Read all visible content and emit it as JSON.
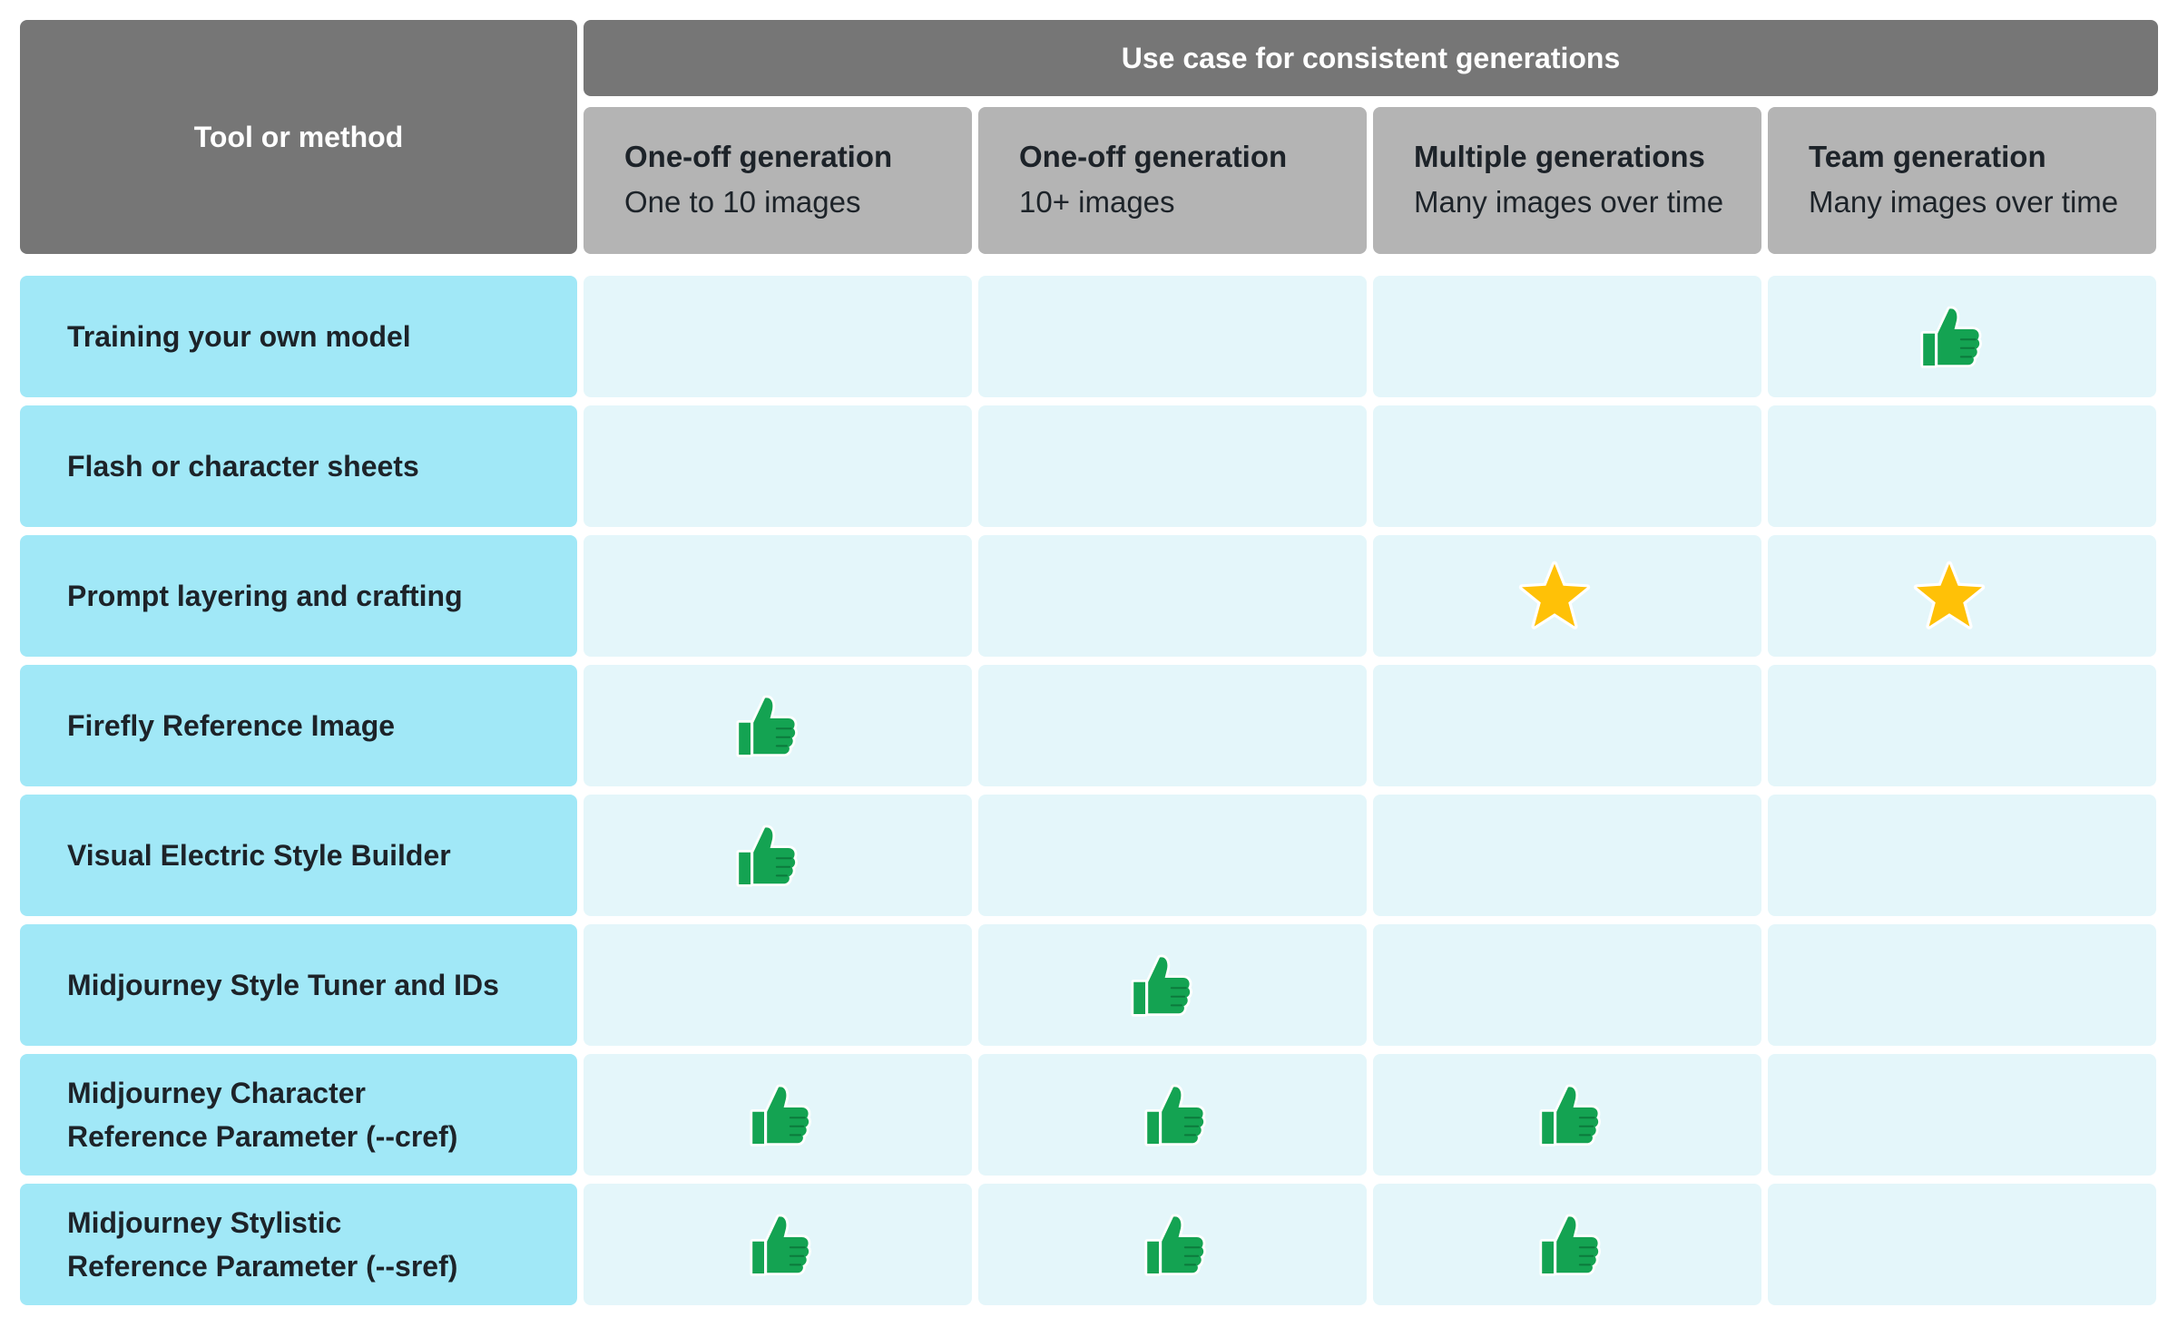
{
  "header": {
    "tool_column": "Tool or method",
    "use_case_title": "Use case for consistent generations"
  },
  "columns": [
    {
      "title": "One-off generation",
      "subtitle": "One to 10 images"
    },
    {
      "title": "One-off generation",
      "subtitle": "10+ images"
    },
    {
      "title": "Multiple generations",
      "subtitle": "Many images over time"
    },
    {
      "title": "Team generation",
      "subtitle": "Many images over time"
    }
  ],
  "rows": [
    {
      "label_lines": [
        "Training your own model"
      ],
      "marks": [
        "",
        "",
        "",
        "thumbs-up"
      ]
    },
    {
      "label_lines": [
        "Flash or character sheets"
      ],
      "marks": [
        "",
        "",
        "",
        ""
      ]
    },
    {
      "label_lines": [
        "Prompt layering and crafting"
      ],
      "marks": [
        "",
        "",
        "star",
        "star"
      ]
    },
    {
      "label_lines": [
        "Firefly Reference Image"
      ],
      "marks": [
        "thumbs-up",
        "",
        "",
        ""
      ]
    },
    {
      "label_lines": [
        "Visual Electric Style Builder"
      ],
      "marks": [
        "thumbs-up",
        "",
        "",
        ""
      ]
    },
    {
      "label_lines": [
        "Midjourney Style Tuner and IDs"
      ],
      "marks": [
        "",
        "thumbs-up",
        "",
        ""
      ]
    },
    {
      "label_lines": [
        "Midjourney Character",
        "Reference Parameter (--cref)"
      ],
      "marks": [
        "thumbs-up",
        "thumbs-up",
        "thumbs-up",
        ""
      ]
    },
    {
      "label_lines": [
        "Midjourney Stylistic",
        "Reference Parameter (--sref)"
      ],
      "marks": [
        "thumbs-up",
        "thumbs-up",
        "thumbs-up",
        ""
      ]
    }
  ],
  "colors": {
    "header_dark": "#767676",
    "header_light": "#b4b4b4",
    "row_label_bg": "#a1e8f7",
    "cell_bg": "#e4f6fa",
    "thumb": "#14a352",
    "star": "#ffc107"
  }
}
